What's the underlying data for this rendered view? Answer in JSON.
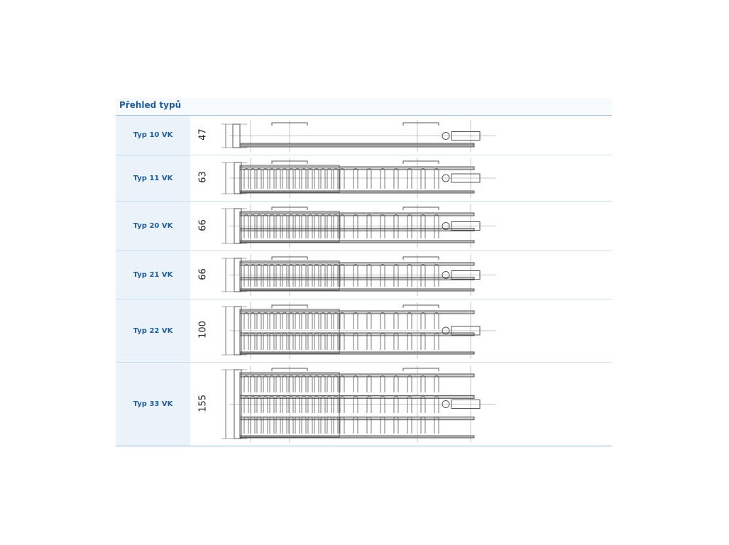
{
  "title": "Přehled typů",
  "rows": [
    {
      "type": "Typ 10 VK",
      "depth": "47",
      "panels": 1,
      "fins": 0
    },
    {
      "type": "Typ 11 VK",
      "depth": "63",
      "panels": 1,
      "fins": 1
    },
    {
      "type": "Typ 20 VK",
      "depth": "66",
      "panels": 2,
      "fins": 0
    },
    {
      "type": "Typ 21 VK",
      "depth": "66",
      "panels": 2,
      "fins": 1
    },
    {
      "type": "Typ 22 VK",
      "depth": "100",
      "panels": 2,
      "fins": 2
    },
    {
      "type": "Typ 33 VK",
      "depth": "155",
      "panels": 3,
      "fins": 3
    }
  ],
  "colors": {
    "heading": "#1f5c99",
    "label_bg": "#eaf2fa",
    "rule": "#9fc3de",
    "drawing": "#555555"
  }
}
